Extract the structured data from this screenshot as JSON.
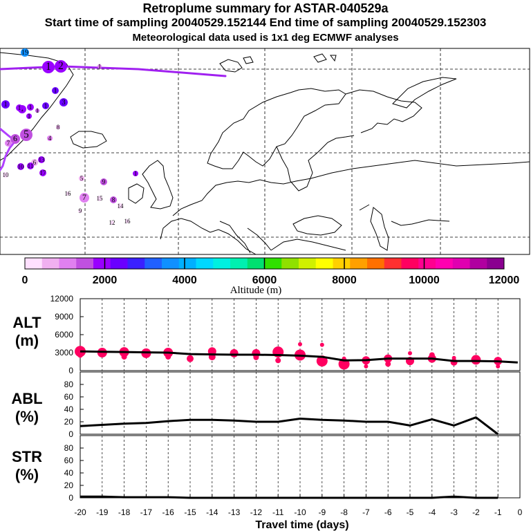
{
  "header": {
    "title": "Retroplume summary for ASTAR-040529a",
    "sampling": "Start time of sampling 20040529.152144     End time of sampling 20040529.152303",
    "met": "Meteorological data used is 1x1 deg ECMWF analyses"
  },
  "colorbar": {
    "tick_labels": [
      "0",
      "2000",
      "4000",
      "6000",
      "8000",
      "10000",
      "12000"
    ],
    "label": "Altitude (m)",
    "colors": [
      "#ffe0ff",
      "#f0b0f0",
      "#e080f0",
      "#c050e0",
      "#9900ff",
      "#6a00ff",
      "#3a20ff",
      "#2060ff",
      "#1090ff",
      "#00b0ff",
      "#00d8ff",
      "#00f0e0",
      "#00f0b0",
      "#00e070",
      "#30e000",
      "#90e000",
      "#d0f000",
      "#ffff00",
      "#ffd000",
      "#ffa000",
      "#ff7000",
      "#ff3030",
      "#ff0060",
      "#ff0090",
      "#ff00b0",
      "#e000b0",
      "#b000a0",
      "#8a0090"
    ]
  },
  "map": {
    "labels": [
      "19",
      "1",
      "2",
      "1",
      "1",
      "1",
      "1",
      "1",
      "1",
      "3",
      "1",
      "1",
      "1",
      "8",
      "4",
      "5",
      "6",
      "7",
      "6",
      "13",
      "10",
      "17",
      "11",
      "5",
      "10",
      "1",
      "9",
      "16",
      "7",
      "15",
      "8",
      "9",
      "14",
      "12",
      "16"
    ]
  },
  "chart_data": [
    {
      "type": "line",
      "name": "ALT",
      "ylabel": [
        "ALT",
        "(m)"
      ],
      "yticks": [
        "12000",
        "9000",
        "6000",
        "3000",
        "0"
      ],
      "ylim": [
        0,
        12000
      ],
      "x": [
        -20,
        -19,
        -18,
        -17,
        -16,
        -15,
        -14,
        -13,
        -12,
        -11,
        -10,
        -9,
        -8,
        -7,
        -6,
        -5,
        -4,
        -3,
        -2,
        -1,
        -0.1
      ],
      "values": [
        3200,
        3150,
        3100,
        3050,
        3000,
        2750,
        2700,
        2650,
        2650,
        2600,
        2500,
        2300,
        1700,
        1750,
        2000,
        2000,
        2000,
        1600,
        1600,
        1550,
        1350
      ],
      "dots": [
        {
          "x": -20,
          "y": 3200,
          "r": 8
        },
        {
          "x": -20,
          "y": 2600,
          "r": 4
        },
        {
          "x": -19,
          "y": 3000,
          "r": 7
        },
        {
          "x": -18,
          "y": 3100,
          "r": 7
        },
        {
          "x": -18,
          "y": 2300,
          "r": 4
        },
        {
          "x": -17,
          "y": 2900,
          "r": 7
        },
        {
          "x": -16,
          "y": 3000,
          "r": 7
        },
        {
          "x": -16,
          "y": 2300,
          "r": 4
        },
        {
          "x": -15,
          "y": 2000,
          "r": 5
        },
        {
          "x": -14,
          "y": 3200,
          "r": 6
        },
        {
          "x": -14,
          "y": 2300,
          "r": 5
        },
        {
          "x": -13,
          "y": 2900,
          "r": 6
        },
        {
          "x": -12,
          "y": 2900,
          "r": 6
        },
        {
          "x": -12,
          "y": 2200,
          "r": 4
        },
        {
          "x": -11,
          "y": 3100,
          "r": 8
        },
        {
          "x": -11,
          "y": 1700,
          "r": 4
        },
        {
          "x": -10,
          "y": 2600,
          "r": 8
        },
        {
          "x": -10,
          "y": 4400,
          "r": 3
        },
        {
          "x": -9,
          "y": 1600,
          "r": 8
        },
        {
          "x": -9,
          "y": 4300,
          "r": 3
        },
        {
          "x": -8,
          "y": 1100,
          "r": 8
        },
        {
          "x": -8,
          "y": 2000,
          "r": 3
        },
        {
          "x": -7,
          "y": 1700,
          "r": 6
        },
        {
          "x": -7,
          "y": 700,
          "r": 3
        },
        {
          "x": -6,
          "y": 2000,
          "r": 6
        },
        {
          "x": -6,
          "y": 1100,
          "r": 4
        },
        {
          "x": -5,
          "y": 1600,
          "r": 6
        },
        {
          "x": -5,
          "y": 2900,
          "r": 3
        },
        {
          "x": -4,
          "y": 2000,
          "r": 6
        },
        {
          "x": -4,
          "y": 2600,
          "r": 4
        },
        {
          "x": -3,
          "y": 1400,
          "r": 5
        },
        {
          "x": -3,
          "y": 2100,
          "r": 3
        },
        {
          "x": -2,
          "y": 1800,
          "r": 7
        },
        {
          "x": -1,
          "y": 1600,
          "r": 6
        },
        {
          "x": -1,
          "y": 700,
          "r": 3
        }
      ]
    },
    {
      "type": "line",
      "name": "ABL",
      "ylabel": [
        "ABL",
        "(%)"
      ],
      "yticks": [
        "80",
        "60",
        "40",
        "20",
        "0"
      ],
      "ylim": [
        0,
        100
      ],
      "x": [
        -20,
        -19,
        -18,
        -17,
        -16,
        -15,
        -14,
        -13,
        -12,
        -11,
        -10,
        -9,
        -8,
        -7,
        -6,
        -5,
        -4,
        -3,
        -2,
        -1
      ],
      "values": [
        13,
        15,
        17,
        18,
        21,
        23,
        23,
        22,
        20,
        20,
        25,
        23,
        22,
        20,
        20,
        14,
        24,
        14,
        27,
        0
      ]
    },
    {
      "type": "line",
      "name": "STR",
      "ylabel": [
        "STR",
        "(%)"
      ],
      "yticks": [
        "80",
        "60",
        "40",
        "20",
        "0"
      ],
      "ylim": [
        0,
        100
      ],
      "x": [
        -20,
        -19,
        -18,
        -17,
        -16,
        -15,
        -14,
        -13,
        -12,
        -11,
        -10,
        -9,
        -8,
        -7,
        -6,
        -5,
        -4,
        -3,
        -2,
        -1
      ],
      "values": [
        2,
        2,
        1,
        1,
        1,
        0,
        0,
        0,
        0,
        0,
        0,
        0,
        0,
        0,
        0,
        0,
        0,
        2,
        0,
        0
      ]
    }
  ],
  "xaxis": {
    "ticks": [
      "-20",
      "-19",
      "-18",
      "-17",
      "-16",
      "-15",
      "-14",
      "-13",
      "-12",
      "-11",
      "-10",
      "-9",
      "-8",
      "-7",
      "-6",
      "-5",
      "-4",
      "-3",
      "-2",
      "-1",
      "0"
    ],
    "label": "Travel time (days)"
  }
}
